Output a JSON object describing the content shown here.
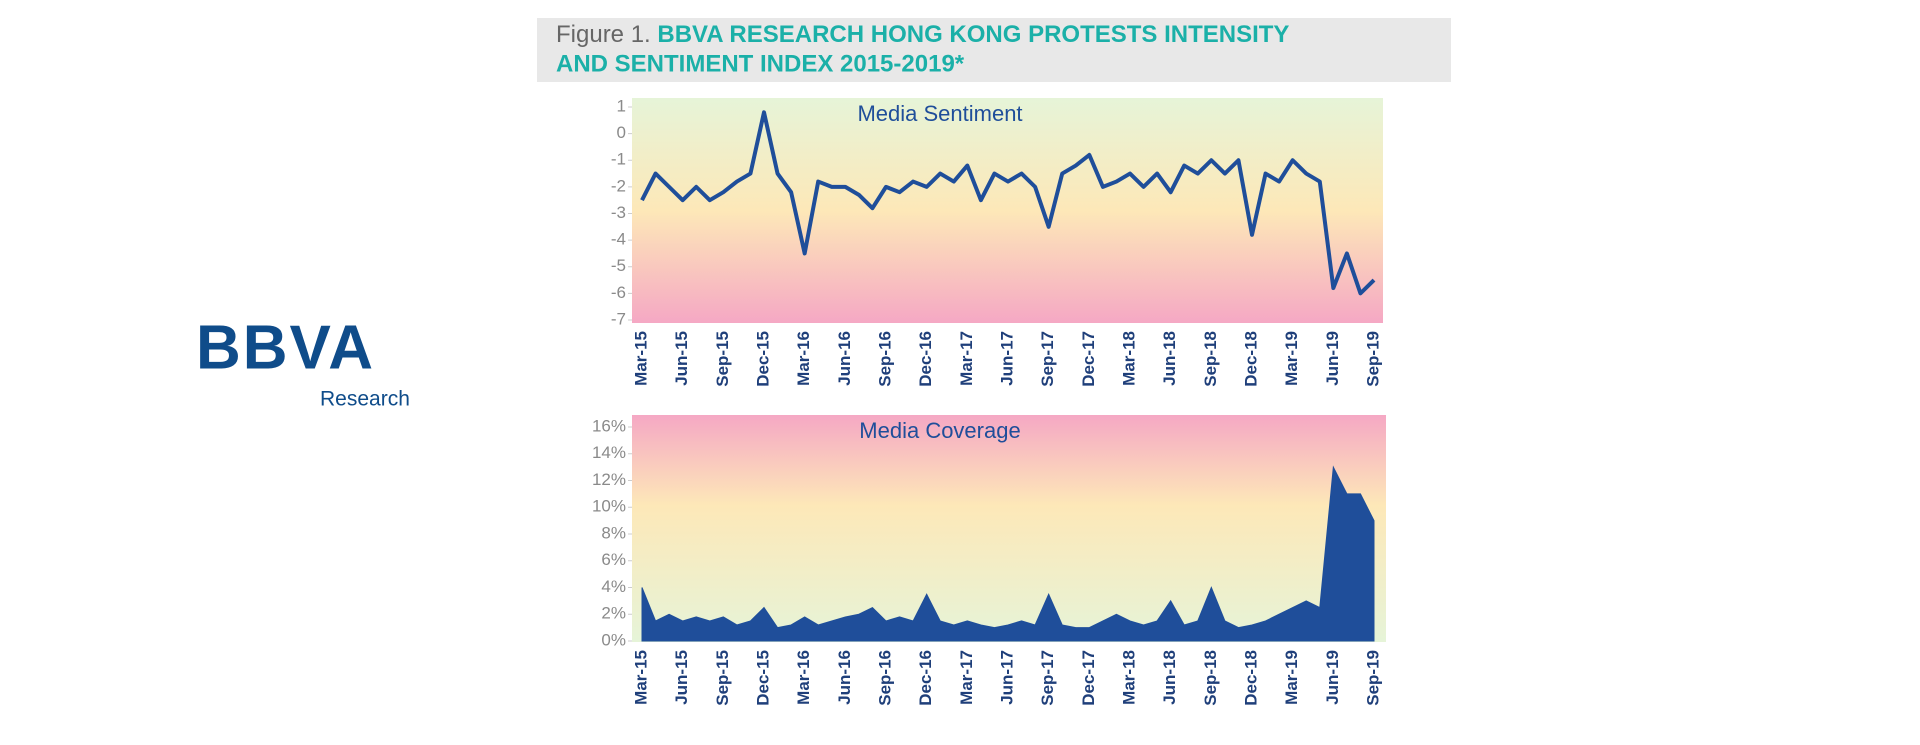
{
  "header": {
    "figure_label": "Figure 1. ",
    "title_line1": "BBVA RESEARCH HONG KONG PROTESTS INTENSITY",
    "title_line2": "AND SENTIMENT INDEX 2015-2019*"
  },
  "logo": {
    "brand": "BBVA",
    "subtitle": "Research"
  },
  "chart_data": [
    {
      "type": "line",
      "title": "Media Sentiment",
      "color": "#1f4e9a",
      "categories": [
        "Mar-15",
        null,
        null,
        "Jun-15",
        null,
        null,
        "Sep-15",
        null,
        null,
        "Dec-15",
        null,
        null,
        "Mar-16",
        null,
        null,
        "Jun-16",
        null,
        null,
        "Sep-16",
        null,
        null,
        "Dec-16",
        null,
        null,
        "Mar-17",
        null,
        null,
        "Jun-17",
        null,
        null,
        "Sep-17",
        null,
        null,
        "Dec-17",
        null,
        null,
        "Mar-18",
        null,
        null,
        "Jun-18",
        null,
        null,
        "Sep-18",
        null,
        null,
        "Dec-18",
        null,
        null,
        "Mar-19",
        null,
        null,
        "Jun-19",
        null,
        null,
        "Sep-19"
      ],
      "values": [
        -2.5,
        -1.5,
        -2,
        -2.5,
        -2,
        -2.5,
        -2.2,
        -1.8,
        -1.5,
        0.8,
        -1.5,
        -2.2,
        -4.5,
        -1.8,
        -2,
        -2,
        -2.3,
        -2.8,
        -2,
        -2.2,
        -1.8,
        -2,
        -1.5,
        -1.8,
        -1.2,
        -2.5,
        -1.5,
        -1.8,
        -1.5,
        -2,
        -3.5,
        -1.5,
        -1.2,
        -0.8,
        -2,
        -1.8,
        -1.5,
        -2,
        -1.5,
        -2.2,
        -1.2,
        -1.5,
        -1,
        -1.5,
        -1,
        -3.8,
        -1.5,
        -1.8,
        -1,
        -1.5,
        -1.8,
        -5.8,
        -4.5,
        -6,
        -5.5
      ],
      "ylim": [
        -7,
        1
      ],
      "yticks": [
        1,
        0,
        -1,
        -2,
        -3,
        -4,
        -5,
        -6,
        -7
      ]
    },
    {
      "type": "area",
      "title": "Media Coverage",
      "color": "#1f4e9a",
      "categories": [
        "Mar-15",
        null,
        null,
        "Jun-15",
        null,
        null,
        "Sep-15",
        null,
        null,
        "Dec-15",
        null,
        null,
        "Mar-16",
        null,
        null,
        "Jun-16",
        null,
        null,
        "Sep-16",
        null,
        null,
        "Dec-16",
        null,
        null,
        "Mar-17",
        null,
        null,
        "Jun-17",
        null,
        null,
        "Sep-17",
        null,
        null,
        "Dec-17",
        null,
        null,
        "Mar-18",
        null,
        null,
        "Jun-18",
        null,
        null,
        "Sep-18",
        null,
        null,
        "Dec-18",
        null,
        null,
        "Mar-19",
        null,
        null,
        "Jun-19",
        null,
        null,
        "Sep-19"
      ],
      "values": [
        4,
        1.5,
        2,
        1.5,
        1.8,
        1.5,
        1.8,
        1.2,
        1.5,
        2.5,
        1,
        1.2,
        1.8,
        1.2,
        1.5,
        1.8,
        2,
        2.5,
        1.5,
        1.8,
        1.5,
        3.5,
        1.5,
        1.2,
        1.5,
        1.2,
        1,
        1.2,
        1.5,
        1.2,
        3.5,
        1.2,
        1,
        1,
        1.5,
        2,
        1.5,
        1.2,
        1.5,
        3,
        1.2,
        1.5,
        4,
        1.5,
        1,
        1.2,
        1.5,
        2,
        2.5,
        3,
        2.5,
        13,
        11,
        11,
        9
      ],
      "ylim": [
        0,
        16
      ],
      "yticks": [
        {
          "value": 0,
          "label": "0%"
        },
        {
          "value": 2,
          "label": "2%"
        },
        {
          "value": 4,
          "label": "4%"
        },
        {
          "value": 6,
          "label": "6%"
        },
        {
          "value": 8,
          "label": "8%"
        },
        {
          "value": 10,
          "label": "10%"
        },
        {
          "value": 12,
          "label": "12%"
        },
        {
          "value": 14,
          "label": "14%"
        },
        {
          "value": 16,
          "label": "16%"
        }
      ]
    }
  ]
}
